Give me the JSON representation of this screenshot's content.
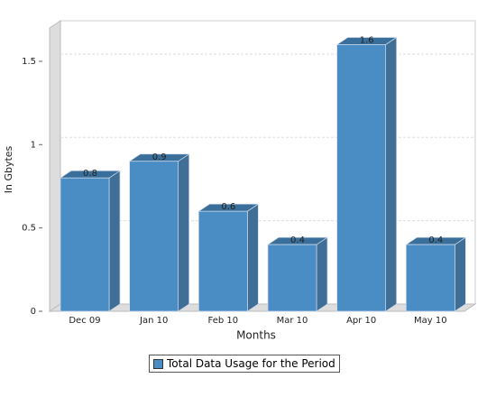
{
  "chart_data": {
    "type": "bar",
    "categories": [
      "Dec 09",
      "Jan 10",
      "Feb 10",
      "Mar 10",
      "Apr 10",
      "May 10"
    ],
    "series": [
      {
        "name": "Total Data Usage for the Period",
        "color": "#4a8cc4",
        "values": [
          0.8,
          0.9,
          0.6,
          0.4,
          1.6,
          0.4
        ]
      }
    ],
    "ylim": [
      0,
      1.7
    ],
    "yticks": [
      0,
      0.5,
      1,
      1.5
    ],
    "y_label": "In Gbytes",
    "x_label": "Months",
    "grid": true
  }
}
